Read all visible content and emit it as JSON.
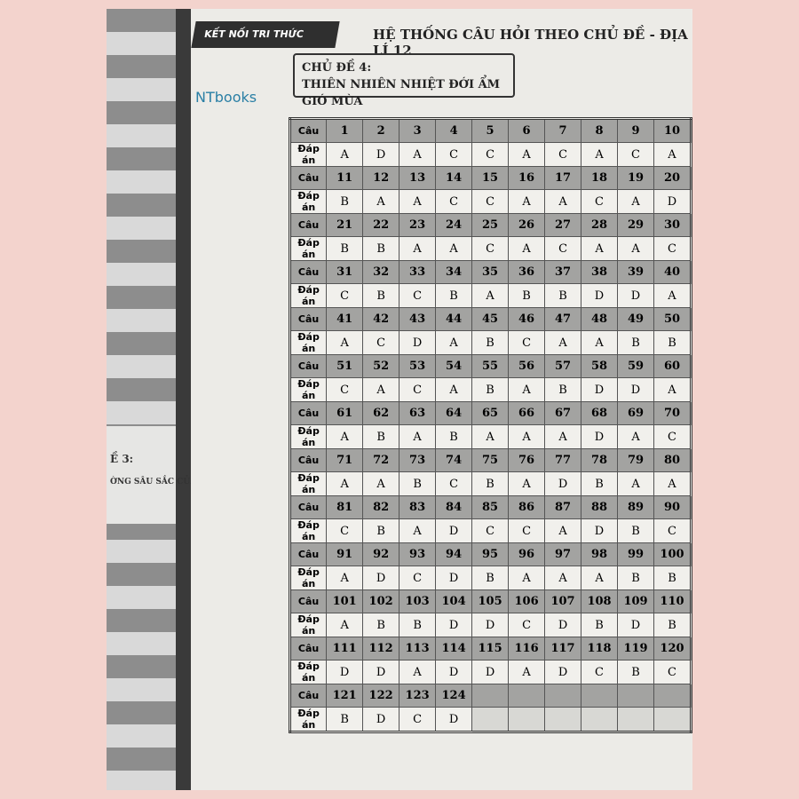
{
  "header": {
    "series": "KẾT NỐI TRI THỨC",
    "title": "HỆ THỐNG CÂU HỎI THEO CHỦ ĐỀ - ĐỊA LÍ 12",
    "brand": "NTbooks"
  },
  "left_page": {
    "topic": "Ề 3:",
    "subtitle": "ỜNG SÂU SẮC CỦA BIỂ"
  },
  "topic": {
    "number": "CHỦ ĐỀ 4:",
    "name": "THIÊN NHIÊN NHIỆT ĐỚI ẨM GIÓ MÙA"
  },
  "table": {
    "question_label": "Câu",
    "answer_label": "Đáp án",
    "rows": [
      {
        "questions": [
          1,
          2,
          3,
          4,
          5,
          6,
          7,
          8,
          9,
          10
        ],
        "answers": [
          "A",
          "D",
          "A",
          "C",
          "C",
          "A",
          "C",
          "A",
          "C",
          "A"
        ]
      },
      {
        "questions": [
          11,
          12,
          13,
          14,
          15,
          16,
          17,
          18,
          19,
          20
        ],
        "answers": [
          "B",
          "A",
          "A",
          "C",
          "C",
          "A",
          "A",
          "C",
          "A",
          "D"
        ]
      },
      {
        "questions": [
          21,
          22,
          23,
          24,
          25,
          26,
          27,
          28,
          29,
          30
        ],
        "answers": [
          "B",
          "B",
          "A",
          "A",
          "C",
          "A",
          "C",
          "A",
          "A",
          "C"
        ]
      },
      {
        "questions": [
          31,
          32,
          33,
          34,
          35,
          36,
          37,
          38,
          39,
          40
        ],
        "answers": [
          "C",
          "B",
          "C",
          "B",
          "A",
          "B",
          "B",
          "D",
          "D",
          "A"
        ]
      },
      {
        "questions": [
          41,
          42,
          43,
          44,
          45,
          46,
          47,
          48,
          49,
          50
        ],
        "answers": [
          "A",
          "C",
          "D",
          "A",
          "B",
          "C",
          "A",
          "A",
          "B",
          "B"
        ]
      },
      {
        "questions": [
          51,
          52,
          53,
          54,
          55,
          56,
          57,
          58,
          59,
          60
        ],
        "answers": [
          "C",
          "A",
          "C",
          "A",
          "B",
          "A",
          "B",
          "D",
          "D",
          "A"
        ]
      },
      {
        "questions": [
          61,
          62,
          63,
          64,
          65,
          66,
          67,
          68,
          69,
          70
        ],
        "answers": [
          "A",
          "B",
          "A",
          "B",
          "A",
          "A",
          "A",
          "D",
          "A",
          "C"
        ]
      },
      {
        "questions": [
          71,
          72,
          73,
          74,
          75,
          76,
          77,
          78,
          79,
          80
        ],
        "answers": [
          "A",
          "A",
          "B",
          "C",
          "B",
          "A",
          "D",
          "B",
          "A",
          "A"
        ]
      },
      {
        "questions": [
          81,
          82,
          83,
          84,
          85,
          86,
          87,
          88,
          89,
          90
        ],
        "answers": [
          "C",
          "B",
          "A",
          "D",
          "C",
          "C",
          "A",
          "D",
          "B",
          "C"
        ]
      },
      {
        "questions": [
          91,
          92,
          93,
          94,
          95,
          96,
          97,
          98,
          99,
          100
        ],
        "answers": [
          "A",
          "D",
          "C",
          "D",
          "B",
          "A",
          "A",
          "A",
          "B",
          "B"
        ]
      },
      {
        "questions": [
          101,
          102,
          103,
          104,
          105,
          106,
          107,
          108,
          109,
          110
        ],
        "answers": [
          "A",
          "B",
          "B",
          "D",
          "D",
          "C",
          "D",
          "B",
          "D",
          "B"
        ]
      },
      {
        "questions": [
          111,
          112,
          113,
          114,
          115,
          116,
          117,
          118,
          119,
          120
        ],
        "answers": [
          "D",
          "D",
          "A",
          "D",
          "D",
          "A",
          "D",
          "C",
          "B",
          "C"
        ]
      },
      {
        "questions": [
          121,
          122,
          123,
          124
        ],
        "answers": [
          "B",
          "D",
          "C",
          "D"
        ]
      }
    ]
  }
}
